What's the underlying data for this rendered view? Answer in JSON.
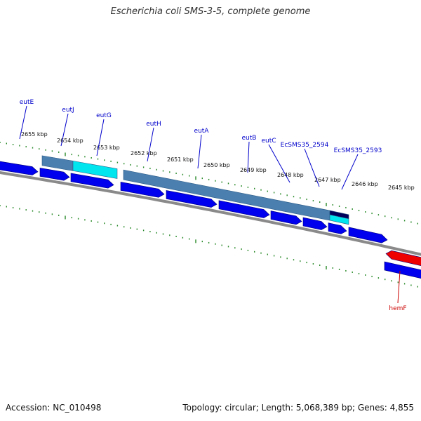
{
  "title": "Escherichia coli SMS-3-5, complete genome",
  "footer": {
    "accession": "Accession: NC_010498",
    "summary": "Topology: circular; Length: 5,068,389 bp; Genes: 4,855"
  },
  "colors": {
    "forward_gene": "#0000ee",
    "reverse_gene": "#ee0000",
    "operon_bar": "#4a7fb0",
    "highlight": "#00e5ee",
    "backbone": "#8a8a8a",
    "tick": "#2a8a2a",
    "forward_label": "#0000cc",
    "reverse_label": "#cc0000"
  },
  "kbp_ticks": [
    "2655 kbp",
    "2654 kbp",
    "2653 kbp",
    "2652 kbp",
    "2651 kbp",
    "2650 kbp",
    "2649 kbp",
    "2648 kbp",
    "2647 kbp",
    "2646 kbp",
    "2645 kbp"
  ],
  "gene_labels": [
    {
      "name": "eutE",
      "strand": "forward"
    },
    {
      "name": "eutJ",
      "strand": "forward"
    },
    {
      "name": "eutG",
      "strand": "forward"
    },
    {
      "name": "eutH",
      "strand": "forward"
    },
    {
      "name": "eutA",
      "strand": "forward"
    },
    {
      "name": "eutB",
      "strand": "forward"
    },
    {
      "name": "eutC",
      "strand": "forward"
    },
    {
      "name": "EcSMS35_2594",
      "strand": "forward"
    },
    {
      "name": "EcSMS35_2593",
      "strand": "forward"
    },
    {
      "name": "hemF",
      "strand": "reverse"
    }
  ]
}
